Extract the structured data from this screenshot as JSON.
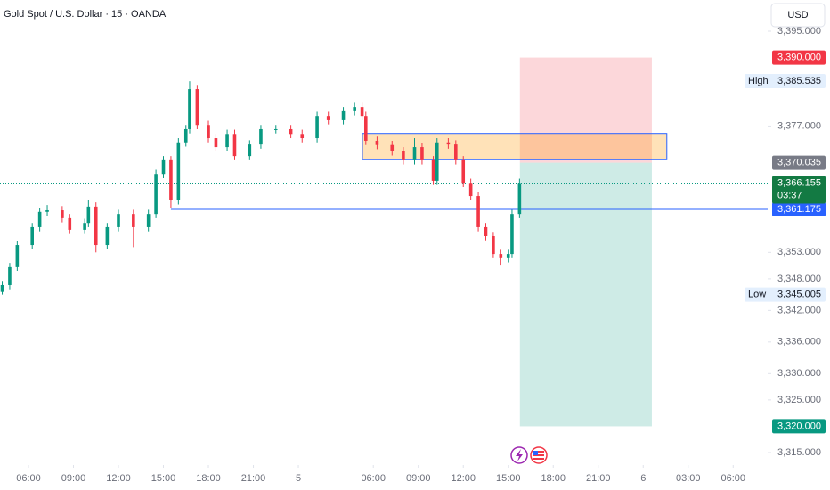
{
  "chart_data": {
    "type": "candlestick",
    "title": "Gold Spot / U.S. Dollar · 15 · OANDA",
    "currency": "USD",
    "up_color": "#089981",
    "down_color": "#f23645",
    "x": [
      -7,
      -5,
      -3,
      1,
      3,
      5,
      9,
      11,
      15,
      16,
      18,
      21,
      24,
      28,
      32,
      34,
      36,
      38,
      40,
      42,
      43,
      45,
      48,
      50,
      53,
      55,
      59,
      62,
      66,
      70,
      73,
      77,
      80,
      84,
      87,
      89,
      90,
      93,
      97,
      100,
      103,
      105,
      108,
      109,
      112,
      114,
      116,
      118,
      120,
      122,
      124,
      126,
      128,
      129,
      131
    ],
    "open": [
      3345.5,
      3346.8,
      3350.2,
      3354.4,
      3357.8,
      3360.7,
      3361.0,
      3359.5,
      3357.3,
      3358.6,
      3361.7,
      3354.4,
      3357.8,
      3360.3,
      3357.8,
      3360.3,
      3367.9,
      3370.5,
      3362.9,
      3373.9,
      3376.4,
      3384.0,
      3377.2,
      3374.7,
      3373.0,
      3375.5,
      3371.3,
      3373.5,
      3376.4,
      3376.4,
      3375.5,
      3374.7,
      3378.9,
      3378.1,
      3379.8,
      3380.6,
      3378.9,
      3374.2,
      3373.4,
      3372.2,
      3370.5,
      3373.0,
      3370.5,
      3366.6,
      3373.9,
      3373.5,
      3370.5,
      3366.2,
      3363.7,
      3357.8,
      3356.1,
      3352.7,
      3351.9,
      3352.7,
      3360.3
    ],
    "high": [
      3347.6,
      3351.0,
      3355.2,
      3358.6,
      3361.5,
      3362.0,
      3361.8,
      3360.3,
      3359.4,
      3363.0,
      3362.5,
      3358.6,
      3361.1,
      3361.1,
      3361.1,
      3368.7,
      3371.3,
      3371.3,
      3374.7,
      3377.2,
      3385.5,
      3384.8,
      3378.0,
      3375.5,
      3376.3,
      3376.3,
      3374.3,
      3377.2,
      3377.2,
      3377.2,
      3376.3,
      3379.7,
      3379.7,
      3380.6,
      3381.4,
      3381.4,
      3379.7,
      3375.0,
      3374.2,
      3373.0,
      3374.7,
      3373.8,
      3371.3,
      3374.7,
      3374.7,
      3374.3,
      3371.3,
      3367.0,
      3364.5,
      3358.6,
      3356.9,
      3353.5,
      3353.5,
      3361.1,
      3367.0
    ],
    "low": [
      3345.0,
      3346.0,
      3349.5,
      3353.6,
      3357.0,
      3359.9,
      3358.7,
      3356.5,
      3356.5,
      3357.8,
      3353.0,
      3353.6,
      3357.0,
      3354.0,
      3357.0,
      3359.5,
      3367.1,
      3361.5,
      3362.1,
      3373.1,
      3375.6,
      3376.4,
      3373.9,
      3372.2,
      3372.2,
      3370.5,
      3370.5,
      3372.7,
      3375.6,
      3374.7,
      3373.9,
      3373.9,
      3377.3,
      3377.3,
      3379.0,
      3378.1,
      3373.4,
      3372.6,
      3371.4,
      3369.7,
      3369.7,
      3369.7,
      3365.8,
      3365.8,
      3372.7,
      3369.7,
      3365.4,
      3362.9,
      3357.0,
      3355.3,
      3351.9,
      3350.5,
      3351.1,
      3351.9,
      3359.5
    ],
    "close": [
      3346.8,
      3350.2,
      3354.4,
      3357.8,
      3360.7,
      3361.0,
      3359.5,
      3357.3,
      3358.6,
      3361.7,
      3354.4,
      3357.8,
      3360.3,
      3357.8,
      3360.3,
      3367.9,
      3370.5,
      3362.9,
      3373.9,
      3376.4,
      3384.0,
      3377.2,
      3374.7,
      3373.0,
      3375.5,
      3371.3,
      3373.5,
      3376.4,
      3376.4,
      3375.5,
      3374.7,
      3378.9,
      3378.1,
      3379.8,
      3380.6,
      3378.9,
      3374.2,
      3373.4,
      3372.2,
      3370.5,
      3373.0,
      3370.5,
      3366.6,
      3373.9,
      3373.5,
      3370.5,
      3366.2,
      3363.7,
      3357.8,
      3356.1,
      3352.7,
      3351.9,
      3352.7,
      3360.3,
      3366.155
    ],
    "last_label": "3,366.155",
    "countdown": "03:37",
    "last_color": "#137a43",
    "xlim": [
      -7.6,
      197.2
    ],
    "xticks": [
      {
        "value": 0,
        "label": "06:00"
      },
      {
        "value": 12,
        "label": "09:00"
      },
      {
        "value": 24,
        "label": "12:00"
      },
      {
        "value": 36,
        "label": "15:00"
      },
      {
        "value": 48,
        "label": "18:00"
      },
      {
        "value": 60,
        "label": "21:00"
      },
      {
        "value": 72,
        "label": "5"
      },
      {
        "value": 92,
        "label": "06:00"
      },
      {
        "value": 104,
        "label": "09:00"
      },
      {
        "value": 116,
        "label": "12:00"
      },
      {
        "value": 128,
        "label": "15:00"
      },
      {
        "value": 140,
        "label": "18:00"
      },
      {
        "value": 152,
        "label": "21:00"
      },
      {
        "value": 164,
        "label": "6"
      },
      {
        "value": 176,
        "label": "03:00"
      },
      {
        "value": 188,
        "label": "06:00"
      }
    ],
    "ylim": [
      3312.63,
      3400.92
    ],
    "yticks": [
      {
        "value": 3395,
        "label": "3,395.000"
      },
      {
        "value": 3377,
        "label": "3,377.000"
      },
      {
        "value": 3353,
        "label": "3,353.000"
      },
      {
        "value": 3348,
        "label": "3,348.000"
      },
      {
        "value": 3342,
        "label": "3,342.000"
      },
      {
        "value": 3336,
        "label": "3,336.000"
      },
      {
        "value": 3330,
        "label": "3,330.000"
      },
      {
        "value": 3325,
        "label": "3,325.000"
      },
      {
        "value": 3315,
        "label": "3,315.000"
      }
    ],
    "position": {
      "x": [
        131.1,
        166.3
      ],
      "stop": {
        "value": 3390,
        "label": "3,390.000"
      },
      "entry": {
        "value": 3370.035,
        "label": "3,370.035"
      },
      "target": {
        "value": 3320,
        "label": "3,320.000"
      },
      "stop_color": "#f23645",
      "entry_color": "#787b86",
      "target_color": "#089981"
    },
    "zone": {
      "x": [
        89.1,
        170.3
      ],
      "y": [
        3370.6,
        3375.6
      ],
      "color": "#ff9800",
      "border": "#2962ff"
    },
    "level": {
      "x": 38,
      "value": 3361.175,
      "label": "3,361.175",
      "color": "#2962ff"
    },
    "extremes": [
      {
        "tag": "High",
        "value": 3385.535,
        "label": "3,385.535"
      },
      {
        "tag": "Low",
        "value": 3345.005,
        "label": "3,345.005"
      }
    ]
  }
}
